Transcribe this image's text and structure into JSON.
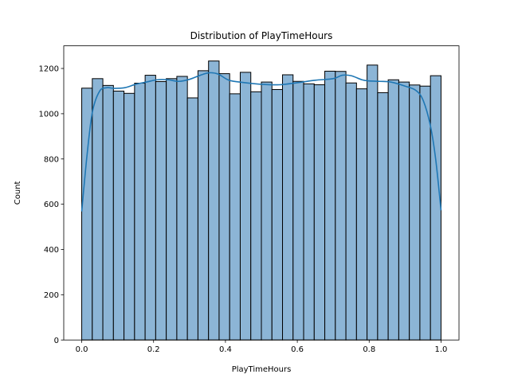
{
  "chart_data": {
    "type": "bar",
    "title": "Distribution of PlayTimeHours",
    "xlabel": "PlayTimeHours",
    "ylabel": "Count",
    "xlim": [
      -0.05,
      1.05
    ],
    "ylim": [
      0,
      1300
    ],
    "grid": false,
    "legend": "none",
    "x_ticks": [
      0.0,
      0.2,
      0.4,
      0.6,
      0.8,
      1.0
    ],
    "x_tick_labels": [
      "0.0",
      "0.2",
      "0.4",
      "0.6",
      "0.8",
      "1.0"
    ],
    "y_ticks": [
      0,
      200,
      400,
      600,
      800,
      1000,
      1200
    ],
    "y_tick_labels": [
      "0",
      "200",
      "400",
      "600",
      "800",
      "1000",
      "1200"
    ],
    "bins": {
      "start": 0.0,
      "end": 1.0,
      "counts": [
        1113,
        1155,
        1125,
        1100,
        1090,
        1135,
        1170,
        1142,
        1155,
        1165,
        1070,
        1190,
        1233,
        1177,
        1088,
        1183,
        1097,
        1140,
        1107,
        1172,
        1143,
        1132,
        1128,
        1188,
        1187,
        1136,
        1110,
        1215,
        1093,
        1150,
        1140,
        1127,
        1122,
        1168
      ]
    },
    "kde": {
      "x": [
        0.0,
        0.015,
        0.03,
        0.05,
        0.07,
        0.09,
        0.12,
        0.15,
        0.18,
        0.21,
        0.24,
        0.27,
        0.3,
        0.33,
        0.355,
        0.38,
        0.41,
        0.45,
        0.5,
        0.55,
        0.6,
        0.65,
        0.7,
        0.725,
        0.75,
        0.78,
        0.8,
        0.83,
        0.86,
        0.9,
        0.93,
        0.95,
        0.97,
        0.985,
        1.0
      ],
      "y": [
        568,
        820,
        1010,
        1100,
        1115,
        1112,
        1115,
        1130,
        1140,
        1150,
        1150,
        1143,
        1152,
        1170,
        1181,
        1175,
        1148,
        1138,
        1130,
        1128,
        1137,
        1148,
        1155,
        1170,
        1168,
        1150,
        1145,
        1143,
        1140,
        1122,
        1103,
        1060,
        950,
        800,
        573
      ]
    },
    "colors": {
      "bar_fill": "#8cb5d6",
      "bar_edge": "#000000",
      "kde_line": "#1f77b4"
    }
  }
}
